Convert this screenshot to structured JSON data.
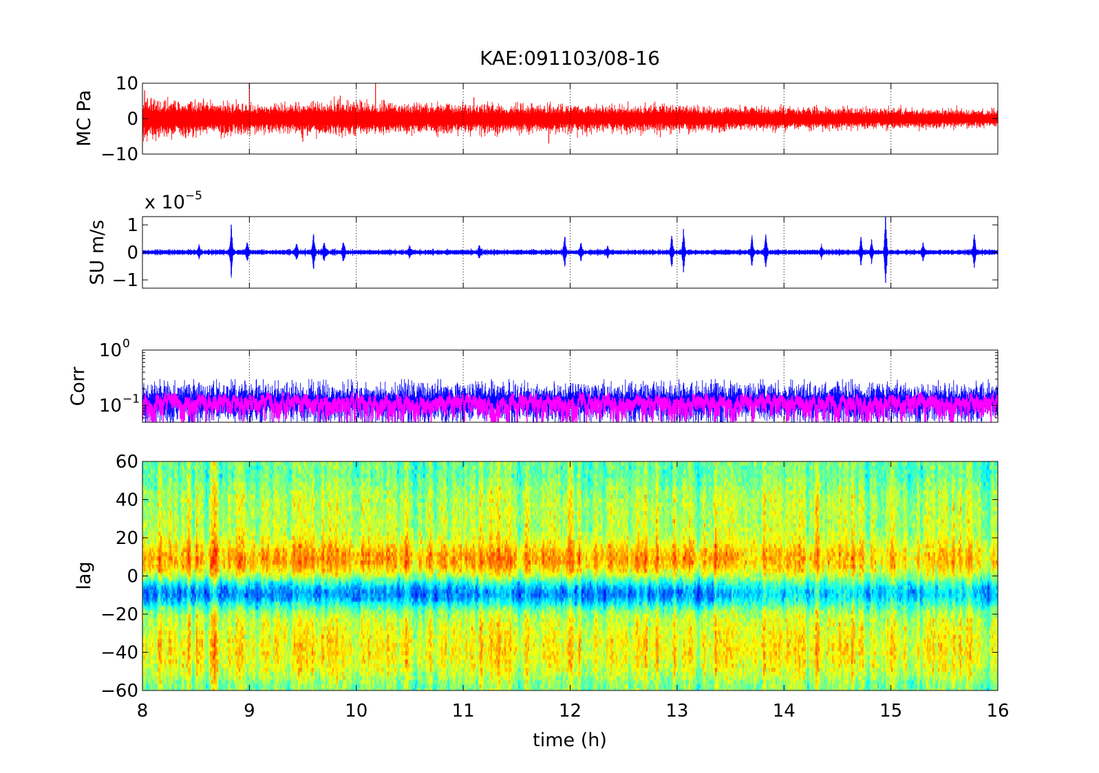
{
  "title": "KAE:091103/08-16",
  "x_axis": {
    "label": "time (h)",
    "range": [
      8,
      16
    ],
    "ticks": [
      8,
      9,
      10,
      11,
      12,
      13,
      14,
      15,
      16
    ],
    "tick_labels": [
      "8",
      "9",
      "10",
      "11",
      "12",
      "13",
      "14",
      "15",
      "16"
    ]
  },
  "colors": {
    "mc_pa": "#ff0000",
    "su": "#0000ff",
    "corr_raw": "#0000ff",
    "corr_smooth": "#ff00ff"
  },
  "chart_data": [
    {
      "type": "line",
      "ylabel": "MC Pa",
      "xlim": [
        8,
        16
      ],
      "ylim": [
        -10,
        10
      ],
      "yticks": [
        10,
        0,
        -10
      ],
      "ytick_labels": [
        "10",
        "0",
        "−10"
      ],
      "grid": "vertical dotted",
      "series": [
        {
          "envelope": {
            "x": [
              8,
              9,
              10,
              11,
              12,
              13,
              14,
              15,
              16
            ],
            "amplitude": [
              3.5,
              2.5,
              2.8,
              2.5,
              2.4,
              2.4,
              2.0,
              1.8,
              1.6
            ]
          }
        }
      ],
      "spikes": [
        {
          "x": 8.02,
          "y": 8
        },
        {
          "x": 9.0,
          "y": 10
        },
        {
          "x": 9.85,
          "y": 6.5
        },
        {
          "x": 10.18,
          "y": 10
        },
        {
          "x": 11.1,
          "y": 6
        },
        {
          "x": 9.5,
          "y": -6.5
        },
        {
          "x": 11.8,
          "y": -7
        }
      ]
    },
    {
      "type": "line",
      "ylabel": "SU m/s",
      "multiplier": "x 10",
      "multiplier_exponent": "−5",
      "xlim": [
        8,
        16
      ],
      "ylim": [
        -1.3,
        1.3
      ],
      "yticks": [
        1,
        0,
        -1
      ],
      "ytick_labels": [
        "1",
        "0",
        "−1"
      ],
      "grid": "vertical dotted",
      "series": [
        {
          "baseline_amplitude": 0.07
        }
      ],
      "bursts": [
        {
          "x": 8.53,
          "a": 0.25
        },
        {
          "x": 8.83,
          "a": 1.0
        },
        {
          "x": 8.98,
          "a": 0.35
        },
        {
          "x": 9.44,
          "a": 0.3
        },
        {
          "x": 9.6,
          "a": 0.65
        },
        {
          "x": 9.7,
          "a": 0.35
        },
        {
          "x": 9.88,
          "a": 0.35
        },
        {
          "x": 10.5,
          "a": 0.2
        },
        {
          "x": 11.15,
          "a": 0.2
        },
        {
          "x": 11.95,
          "a": 0.55
        },
        {
          "x": 12.1,
          "a": 0.3
        },
        {
          "x": 12.35,
          "a": 0.2
        },
        {
          "x": 12.95,
          "a": 0.6
        },
        {
          "x": 13.06,
          "a": 0.85
        },
        {
          "x": 13.7,
          "a": 0.55
        },
        {
          "x": 13.83,
          "a": 0.6
        },
        {
          "x": 14.35,
          "a": 0.2
        },
        {
          "x": 14.72,
          "a": 0.55
        },
        {
          "x": 14.82,
          "a": 0.45
        },
        {
          "x": 14.95,
          "a": 1.3
        },
        {
          "x": 15.3,
          "a": 0.35
        },
        {
          "x": 15.78,
          "a": 0.65
        }
      ]
    },
    {
      "type": "line",
      "ylabel": "Corr",
      "yscale": "log",
      "xlim": [
        8,
        16
      ],
      "ylim": [
        0.05,
        1
      ],
      "yticks": [
        1,
        0.1
      ],
      "ytick_label_base": "10",
      "ytick_label_exponents": [
        "0",
        "−1"
      ],
      "grid": "vertical dotted",
      "series": [
        {
          "name_color": "corr_raw",
          "typical_range": [
            0.06,
            0.25
          ]
        },
        {
          "name_color": "corr_smooth",
          "typical_range": [
            0.08,
            0.17
          ]
        }
      ]
    },
    {
      "type": "heatmap",
      "ylabel": "lag",
      "xlim": [
        8,
        16
      ],
      "ylim": [
        -60,
        60
      ],
      "yticks": [
        60,
        40,
        20,
        0,
        -20,
        -40,
        -60
      ],
      "ytick_labels": [
        "60",
        "40",
        "20",
        "0",
        "−20",
        "−40",
        "−60"
      ],
      "colormap": "jet",
      "structure": [
        {
          "lag_range": [
            0,
            20
          ],
          "level": "high (orange/red)"
        },
        {
          "lag_range": [
            -20,
            0
          ],
          "level": "low (blue)"
        },
        {
          "lag_range": [
            -60,
            -20
          ],
          "level": "medium (yellow/green)"
        },
        {
          "lag_range": [
            20,
            60
          ],
          "level": "medium (green/yellow)"
        }
      ]
    }
  ]
}
